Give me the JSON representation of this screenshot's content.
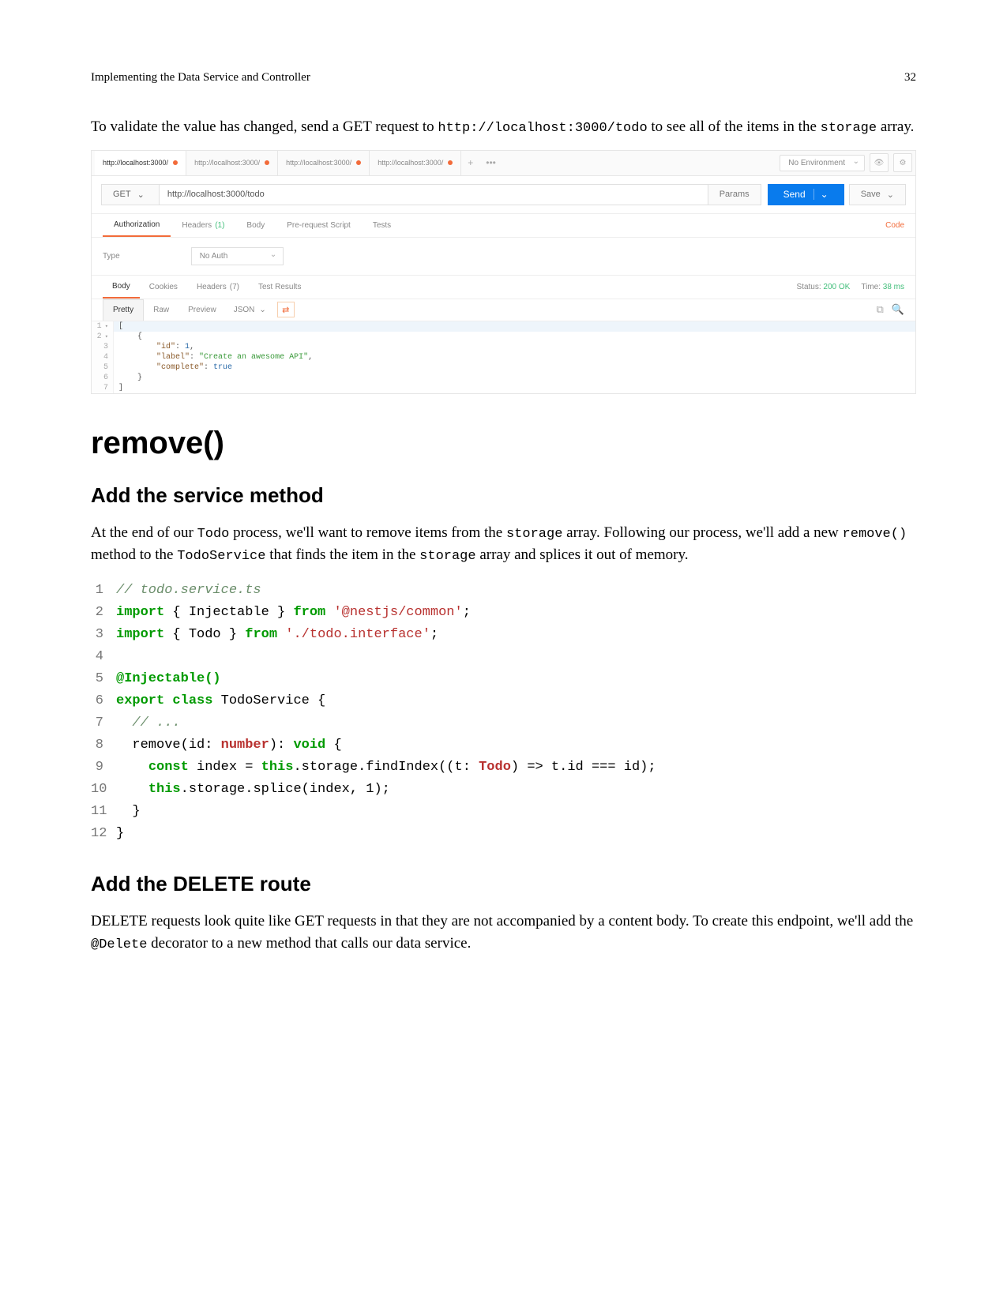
{
  "header": {
    "title": "Implementing the Data Service and Controller",
    "page_number": "32"
  },
  "intro": {
    "pre": "To validate the value has changed, send a GET request to ",
    "url": "http://localhost:3000/todo",
    "mid": " to see all of the items in the ",
    "code2": "storage",
    "post": " array."
  },
  "postman": {
    "tabs": [
      {
        "label": "http://localhost:3000/",
        "active": true
      },
      {
        "label": "http://localhost:3000/",
        "active": false
      },
      {
        "label": "http://localhost:3000/",
        "active": false
      },
      {
        "label": "http://localhost:3000/",
        "active": false
      }
    ],
    "env_label": "No Environment",
    "method": "GET",
    "url": "http://localhost:3000/todo",
    "params_label": "Params",
    "send_label": "Send",
    "save_label": "Save",
    "req_tabs": {
      "authorization": "Authorization",
      "headers": "Headers",
      "headers_count": "(1)",
      "body": "Body",
      "prerequest": "Pre-request Script",
      "tests": "Tests",
      "code_link": "Code"
    },
    "auth": {
      "type_label": "Type",
      "value": "No Auth"
    },
    "resp_tabs": {
      "body": "Body",
      "cookies": "Cookies",
      "headers": "Headers",
      "headers_count": "(7)",
      "tests": "Test Results"
    },
    "status": {
      "label": "Status:",
      "code": "200 OK",
      "time_label": "Time:",
      "time": "38 ms"
    },
    "fmt": {
      "pretty": "Pretty",
      "raw": "Raw",
      "preview": "Preview",
      "json": "JSON"
    },
    "json_lines": [
      {
        "n": "1",
        "fold": true,
        "hl": true,
        "text_raw": "["
      },
      {
        "n": "2",
        "fold": true,
        "text_raw": "    {"
      },
      {
        "n": "3",
        "text_html": "        <span class='pm-key'>\"id\"</span>: <span class='pm-num'>1</span>,"
      },
      {
        "n": "4",
        "text_html": "        <span class='pm-key'>\"label\"</span>: <span class='pm-str'>\"Create an awesome API\"</span>,"
      },
      {
        "n": "5",
        "text_html": "        <span class='pm-key'>\"complete\"</span>: <span class='pm-bool'>true</span>"
      },
      {
        "n": "6",
        "text_raw": "    }"
      },
      {
        "n": "7",
        "text_raw": "]"
      }
    ]
  },
  "h1": "remove()",
  "h2a": "Add the service method",
  "para2": {
    "p1": "At the end of our ",
    "c1": "Todo",
    "p2": " process, we'll want to remove items from the ",
    "c2": "storage",
    "p3": " array. Following our process, we'll add a new ",
    "c3": "remove()",
    "p4": " method to the ",
    "c4": "TodoService",
    "p5": " that finds the item in the ",
    "c5": "storage",
    "p6": " array and splices it out of memory."
  },
  "code": {
    "lines": [
      {
        "n": "1",
        "html": "<span class='c-comment'>// todo.service.ts</span>"
      },
      {
        "n": "2",
        "html": "<span class='c-kw'>import</span> { Injectable } <span class='c-kw'>from</span> <span class='c-str'>'@nestjs/common'</span>;"
      },
      {
        "n": "3",
        "html": "<span class='c-kw'>import</span> { Todo } <span class='c-kw'>from</span> <span class='c-str'>'./todo.interface'</span>;"
      },
      {
        "n": "4",
        "html": ""
      },
      {
        "n": "5",
        "html": "<span class='c-dec'>@Injectable()</span>"
      },
      {
        "n": "6",
        "html": "<span class='c-kw'>export class</span> TodoService {"
      },
      {
        "n": "7",
        "html": "  <span class='c-comment'>// ...</span>"
      },
      {
        "n": "8",
        "html": "  remove(id: <span class='c-type'>number</span>): <span class='c-kw'>void</span> {"
      },
      {
        "n": "9",
        "html": "    <span class='c-kw'>const</span> index = <span class='c-this'>this</span>.storage.findIndex((t: <span class='c-type'>Todo</span>) =&gt; t.id === id);"
      },
      {
        "n": "10",
        "html": "    <span class='c-this'>this</span>.storage.splice(index, 1);"
      },
      {
        "n": "11",
        "html": "  }"
      },
      {
        "n": "12",
        "html": "}"
      }
    ]
  },
  "h2b": "Add the DELETE route",
  "para3": {
    "p1": "DELETE requests look quite like GET requests in that they are not accompanied by a content body. To create this endpoint, we'll add the ",
    "c1": "@Delete",
    "p2": " decorator to a new method that calls our data service."
  }
}
